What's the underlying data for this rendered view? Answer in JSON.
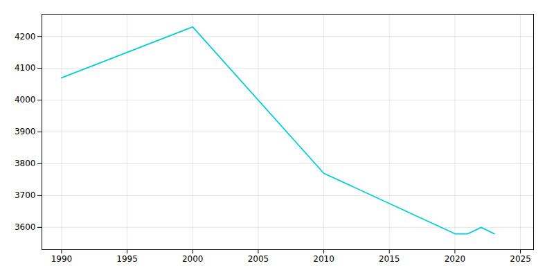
{
  "chart_data": {
    "type": "line",
    "x": [
      1990,
      2000,
      2010,
      2020,
      2021,
      2022,
      2023
    ],
    "values": [
      4070,
      4230,
      3770,
      3580,
      3580,
      3600,
      3580
    ],
    "color": "#00CED1",
    "xlim": [
      1988.5,
      2026
    ],
    "ylim": [
      3530,
      4270
    ],
    "xticks": [
      1990,
      1995,
      2000,
      2005,
      2010,
      2015,
      2020,
      2025
    ],
    "yticks": [
      3600,
      3700,
      3800,
      3900,
      4000,
      4100,
      4200
    ],
    "grid": true
  }
}
